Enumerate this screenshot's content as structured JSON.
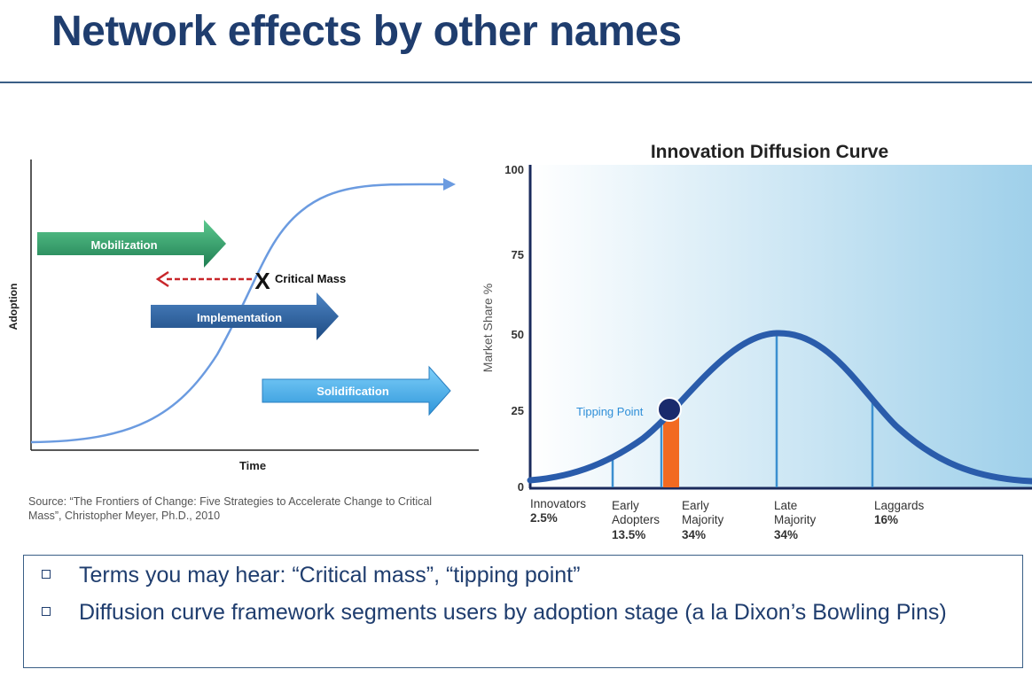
{
  "slide": {
    "title": "Network effects by other names"
  },
  "left_diagram": {
    "y_axis_label": "Adoption",
    "x_axis_label": "Time",
    "arrows": [
      {
        "label": "Mobilization",
        "color": "#2e9e6a"
      },
      {
        "label": "Implementation",
        "color": "#2a5f9e"
      },
      {
        "label": "Solidification",
        "color": "#4aaee8"
      }
    ],
    "critical_mass_marker": "X",
    "critical_mass_label": "Critical Mass",
    "source": "Source: “The Frontiers of Change: Five Strategies to Accelerate Change to Critical Mass”, Christopher Meyer, Ph.D., 2010"
  },
  "right_chart": {
    "title": "Innovation Diffusion Curve",
    "y_axis_label": "Market Share %",
    "y_ticks": [
      "100",
      "75",
      "50",
      "25",
      "0"
    ],
    "tipping_point_label": "Tipping Point",
    "segments": [
      {
        "name": "Innovators",
        "name2": "",
        "pct": "2.5%"
      },
      {
        "name": "Early",
        "name2": "Adopters",
        "pct": "13.5%"
      },
      {
        "name": "Early",
        "name2": "Majority",
        "pct": "34%"
      },
      {
        "name": "Late",
        "name2": "Majority",
        "pct": "34%"
      },
      {
        "name": "Laggards",
        "name2": "",
        "pct": "16%"
      }
    ],
    "curve_color": "#2a5cab",
    "highlight_color": "#f26a21"
  },
  "bullets": [
    "Terms you may hear: “Critical mass”, “tipping point”",
    "Diffusion curve framework segments users by adoption stage (a la Dixon’s Bowling Pins)"
  ]
}
